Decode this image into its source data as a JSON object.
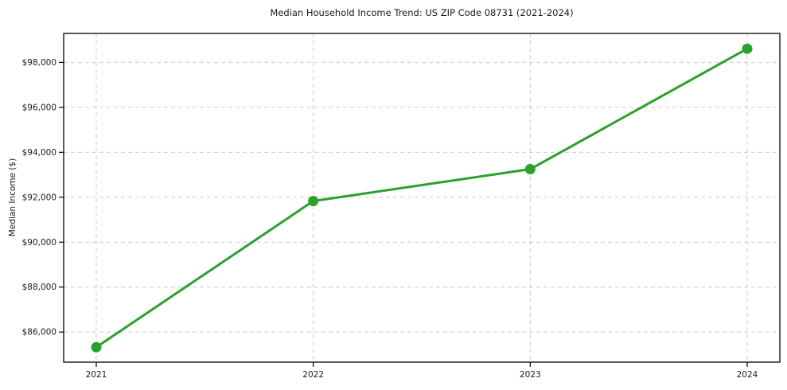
{
  "chart_data": {
    "type": "line",
    "title": "Median Household Income Trend: US ZIP Code 08731 (2021-2024)",
    "xlabel": "",
    "ylabel": "Median Income ($)",
    "categories": [
      "2021",
      "2022",
      "2023",
      "2024"
    ],
    "series": [
      {
        "name": "Median household income",
        "values": [
          85325,
          91830,
          93250,
          98610
        ]
      }
    ],
    "y_ticks": [
      {
        "value": 86000,
        "label": "$86,000"
      },
      {
        "value": 88000,
        "label": "$88,000"
      },
      {
        "value": 90000,
        "label": "$90,000"
      },
      {
        "value": 92000,
        "label": "$92,000"
      },
      {
        "value": 94000,
        "label": "$94,000"
      },
      {
        "value": 96000,
        "label": "$96,000"
      },
      {
        "value": 98000,
        "label": "$98,000"
      }
    ],
    "ylim": [
      84660,
      99290
    ],
    "grid": true,
    "grid_style": "dashed",
    "legend": "none",
    "colors": {
      "line": "#2ca02c",
      "marker": "#2ca02c",
      "grid": "#cccccc",
      "axis": "#000000",
      "text": "#1a1a1a",
      "background": "#ffffff"
    }
  }
}
